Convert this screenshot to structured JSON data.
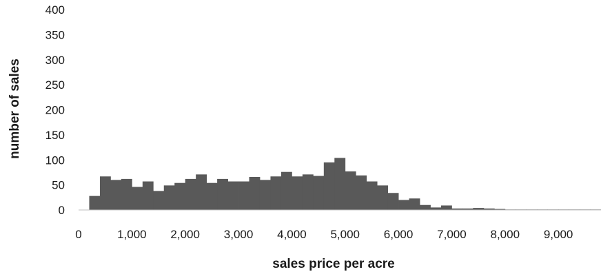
{
  "chart_data": {
    "type": "bar",
    "subtype": "histogram",
    "xlabel": "sales price per acre",
    "ylabel": "number of sales",
    "xlim": [
      0,
      9800
    ],
    "ylim": [
      0,
      400
    ],
    "bin_width": 200,
    "x_ticks": [
      0,
      1000,
      2000,
      3000,
      4000,
      5000,
      6000,
      7000,
      8000,
      9000
    ],
    "x_tick_labels": [
      "0",
      "1,000",
      "2,000",
      "3,000",
      "4,000",
      "5,000",
      "6,000",
      "7,000",
      "8,000",
      "9,000"
    ],
    "y_ticks": [
      0,
      50,
      100,
      150,
      200,
      250,
      300,
      350,
      400
    ],
    "y_tick_labels": [
      "0",
      "50",
      "100",
      "150",
      "200",
      "250",
      "300",
      "350",
      "400"
    ],
    "grid": false,
    "legend": "none",
    "bar_color": "#595959",
    "bins_start": [
      0,
      200,
      400,
      600,
      800,
      1000,
      1200,
      1400,
      1600,
      1800,
      2000,
      2200,
      2400,
      2600,
      2800,
      3000,
      3200,
      3400,
      3600,
      3800,
      4000,
      4200,
      4400,
      4600,
      4800,
      5000,
      5200,
      5400,
      5600,
      5800,
      6000,
      6200,
      6400,
      6600,
      6800,
      7000,
      7200,
      7400,
      7600,
      7800,
      8000,
      8200,
      8400,
      8600,
      8800,
      9000,
      9200,
      9400,
      9600
    ],
    "values": [
      0,
      28,
      67,
      60,
      62,
      46,
      57,
      38,
      49,
      54,
      62,
      71,
      54,
      62,
      57,
      57,
      66,
      60,
      67,
      76,
      67,
      71,
      68,
      95,
      104,
      77,
      69,
      57,
      49,
      34,
      20,
      23,
      10,
      5,
      9,
      3,
      3,
      4,
      3,
      2,
      1,
      1,
      1,
      1,
      1,
      1,
      1,
      1,
      1
    ]
  }
}
